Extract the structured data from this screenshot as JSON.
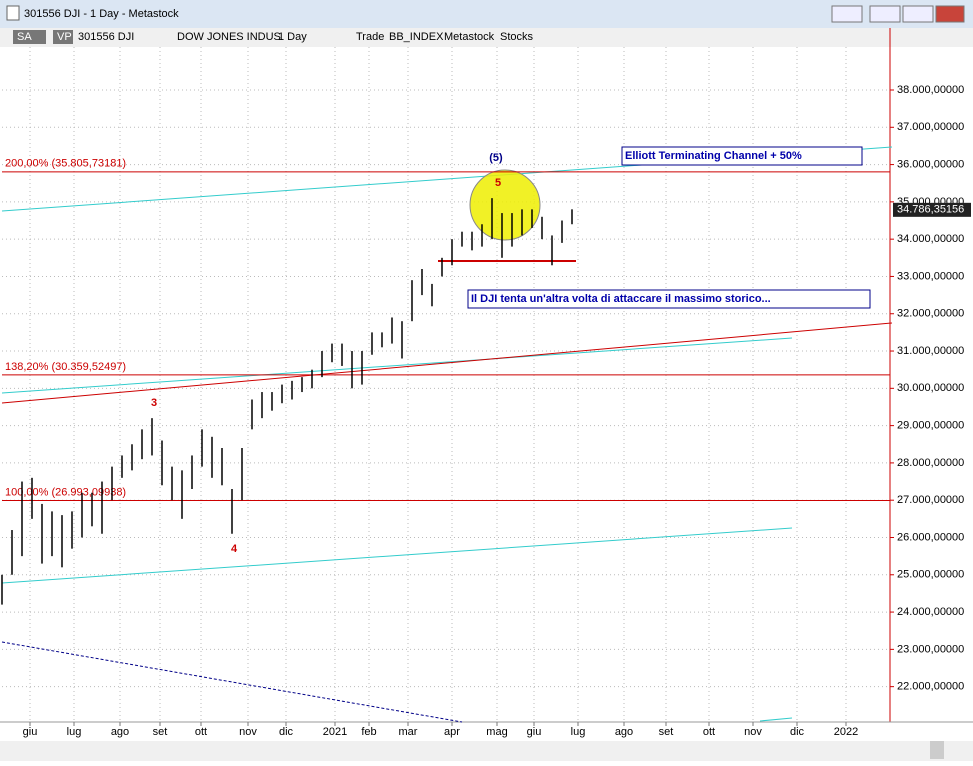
{
  "window": {
    "title": "301556 DJI - 1 Day - Metastock",
    "toolbar": [
      "SA",
      "VP",
      "301556 DJI",
      "DOW JONES INDUS",
      "1 Day",
      "Trade",
      "BB_INDEX",
      "Metastock",
      "Stocks"
    ]
  },
  "chart_data": {
    "type": "ohlc",
    "x": [
      0,
      1,
      2,
      3,
      4,
      5,
      6,
      7,
      8,
      9,
      10,
      11,
      12,
      13,
      14,
      15,
      16,
      17,
      18,
      19,
      20,
      21,
      22,
      23,
      24,
      25,
      26,
      27,
      28,
      29,
      30,
      31,
      32,
      33,
      34,
      35,
      36,
      37,
      38,
      39,
      40,
      41,
      42,
      43,
      44,
      45,
      46,
      47,
      48,
      49,
      50,
      51,
      52,
      53,
      54,
      55,
      56,
      57
    ],
    "high": [
      25000,
      26200,
      27500,
      27600,
      26900,
      26700,
      26600,
      26700,
      27200,
      27200,
      27500,
      27900,
      28200,
      28500,
      28900,
      29200,
      28600,
      27900,
      27800,
      28200,
      28900,
      28700,
      28400,
      27300,
      28400,
      29700,
      29900,
      29900,
      30100,
      30200,
      30300,
      30500,
      31000,
      31200,
      31200,
      31000,
      31000,
      31500,
      31500,
      31900,
      31800,
      32900,
      33200,
      32800,
      33500,
      34000,
      34200,
      34200,
      34400,
      35100,
      34700,
      34700,
      34800,
      34800,
      34600,
      34100,
      34500,
      34800
    ],
    "low": [
      24200,
      25000,
      25500,
      26500,
      25300,
      25500,
      25200,
      25700,
      26000,
      26300,
      26100,
      27000,
      27600,
      27800,
      28100,
      28200,
      27400,
      27000,
      26500,
      27300,
      27900,
      27600,
      27400,
      26100,
      27000,
      28900,
      29200,
      29400,
      29600,
      29700,
      29900,
      30000,
      30300,
      30700,
      30600,
      30000,
      30100,
      30900,
      31100,
      31200,
      30800,
      31800,
      32500,
      32200,
      33000,
      33300,
      33800,
      33700,
      33800,
      34000,
      33500,
      33800,
      34100,
      34300,
      34000,
      33300,
      33900,
      34400
    ],
    "color": "#000000",
    "xlim": [
      0,
      88.8
    ],
    "xticks": [
      {
        "value": 2.8,
        "label": "giu"
      },
      {
        "value": 7.2,
        "label": "lug"
      },
      {
        "value": 11.8,
        "label": "ago"
      },
      {
        "value": 15.8,
        "label": "set"
      },
      {
        "value": 19.9,
        "label": "ott"
      },
      {
        "value": 24.6,
        "label": "nov"
      },
      {
        "value": 28.4,
        "label": "dic"
      },
      {
        "value": 33.3,
        "label": "2021"
      },
      {
        "value": 36.7,
        "label": "feb"
      },
      {
        "value": 40.6,
        "label": "mar"
      },
      {
        "value": 45,
        "label": "apr"
      },
      {
        "value": 49.5,
        "label": "mag"
      },
      {
        "value": 53.2,
        "label": "giu"
      },
      {
        "value": 57.6,
        "label": "lug"
      },
      {
        "value": 62.2,
        "label": "ago"
      },
      {
        "value": 66.4,
        "label": "set"
      },
      {
        "value": 70.7,
        "label": "ott"
      },
      {
        "value": 75.1,
        "label": "nov"
      },
      {
        "value": 79.5,
        "label": "dic"
      },
      {
        "value": 84.4,
        "label": "2022"
      }
    ],
    "ylim": [
      21052,
      39153
    ],
    "yticks": [
      {
        "value": 22000,
        "label": "22.000,00000"
      },
      {
        "value": 23000,
        "label": "23.000,00000"
      },
      {
        "value": 24000,
        "label": "24.000,00000"
      },
      {
        "value": 25000,
        "label": "25.000,00000"
      },
      {
        "value": 26000,
        "label": "26.000,00000"
      },
      {
        "value": 27000,
        "label": "27.000,00000"
      },
      {
        "value": 28000,
        "label": "28.000,00000"
      },
      {
        "value": 29000,
        "label": "29.000,00000"
      },
      {
        "value": 30000,
        "label": "30.000,00000"
      },
      {
        "value": 31000,
        "label": "31.000,00000"
      },
      {
        "value": 32000,
        "label": "32.000,00000"
      },
      {
        "value": 33000,
        "label": "33.000,00000"
      },
      {
        "value": 34000,
        "label": "34.000,00000"
      },
      {
        "value": 35000,
        "label": "35.000,00000"
      },
      {
        "value": 36000,
        "label": "36.000,00000"
      },
      {
        "value": 37000,
        "label": "37.000,00000"
      },
      {
        "value": 38000,
        "label": "38.000,00000"
      }
    ],
    "grid": true,
    "last_price": {
      "value": 34786.35156,
      "label": "34.786,35156"
    },
    "levels": [
      {
        "value": 35805.73181,
        "label": "200,00% (35.805,73181)"
      },
      {
        "value": 30359.52497,
        "label": "138,20% (30.359,52497)"
      },
      {
        "value": 26993.09938,
        "label": "100,00% (26.993,09938)"
      }
    ],
    "wave_labels": [
      "3",
      "4",
      "(5)",
      "5"
    ],
    "annotations": [
      "Elliott Terminating Channel + 50%",
      "Il DJI tenta un'altra volta di attaccare il massimo storico..."
    ]
  }
}
